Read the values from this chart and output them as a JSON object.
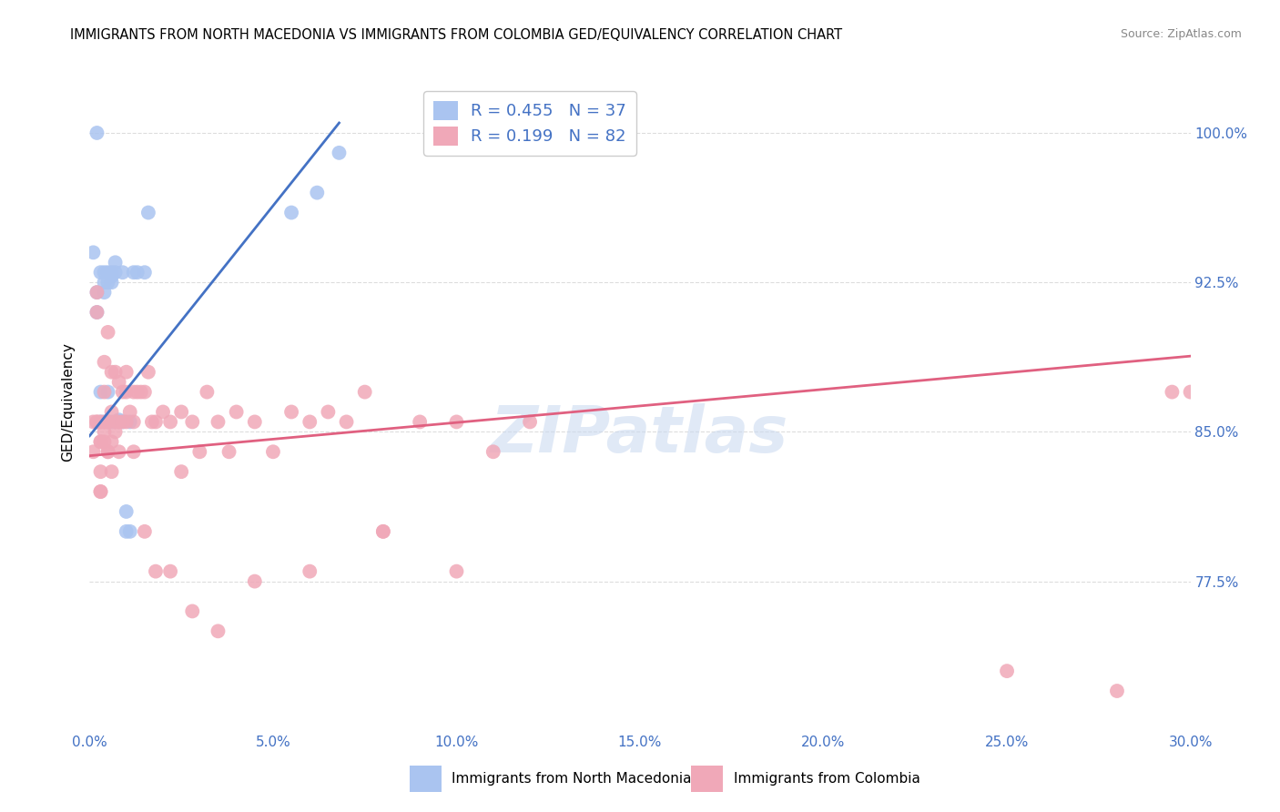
{
  "title": "IMMIGRANTS FROM NORTH MACEDONIA VS IMMIGRANTS FROM COLOMBIA GED/EQUIVALENCY CORRELATION CHART",
  "source": "Source: ZipAtlas.com",
  "ylabel": "GED/Equivalency",
  "ytick_labels": [
    "100.0%",
    "92.5%",
    "85.0%",
    "77.5%"
  ],
  "ytick_values": [
    1.0,
    0.925,
    0.85,
    0.775
  ],
  "xlim": [
    0.0,
    0.3
  ],
  "ylim": [
    0.7,
    1.03
  ],
  "legend_entries": [
    {
      "label": "Immigrants from North Macedonia",
      "color": "#aac4f0",
      "R": "0.455",
      "N": "37"
    },
    {
      "label": "Immigrants from Colombia",
      "color": "#f0a8b8",
      "R": "0.199",
      "N": "82"
    }
  ],
  "macedonia_x": [
    0.001,
    0.002,
    0.002,
    0.003,
    0.003,
    0.004,
    0.004,
    0.004,
    0.005,
    0.005,
    0.005,
    0.006,
    0.006,
    0.006,
    0.007,
    0.007,
    0.007,
    0.008,
    0.008,
    0.009,
    0.009,
    0.01,
    0.01,
    0.011,
    0.011,
    0.012,
    0.013,
    0.015,
    0.016,
    0.003,
    0.004,
    0.005,
    0.006,
    0.055,
    0.062,
    0.068,
    0.002
  ],
  "macedonia_y": [
    0.94,
    0.92,
    0.91,
    0.87,
    0.93,
    0.93,
    0.925,
    0.92,
    0.93,
    0.925,
    0.87,
    0.93,
    0.928,
    0.925,
    0.93,
    0.935,
    0.855,
    0.855,
    0.856,
    0.93,
    0.855,
    0.8,
    0.81,
    0.8,
    0.855,
    0.93,
    0.93,
    0.93,
    0.96,
    0.855,
    0.855,
    0.855,
    0.855,
    0.96,
    0.97,
    0.99,
    1.0
  ],
  "colombia_x": [
    0.001,
    0.001,
    0.002,
    0.002,
    0.002,
    0.003,
    0.003,
    0.003,
    0.003,
    0.004,
    0.004,
    0.004,
    0.004,
    0.005,
    0.005,
    0.005,
    0.006,
    0.006,
    0.006,
    0.007,
    0.007,
    0.008,
    0.008,
    0.009,
    0.009,
    0.01,
    0.01,
    0.011,
    0.012,
    0.012,
    0.013,
    0.014,
    0.015,
    0.016,
    0.017,
    0.018,
    0.02,
    0.022,
    0.025,
    0.025,
    0.028,
    0.03,
    0.032,
    0.035,
    0.038,
    0.04,
    0.045,
    0.05,
    0.055,
    0.06,
    0.065,
    0.07,
    0.075,
    0.08,
    0.09,
    0.1,
    0.11,
    0.12,
    0.002,
    0.003,
    0.003,
    0.004,
    0.005,
    0.005,
    0.006,
    0.007,
    0.008,
    0.01,
    0.012,
    0.015,
    0.018,
    0.022,
    0.028,
    0.035,
    0.045,
    0.06,
    0.08,
    0.1,
    0.25,
    0.28,
    0.295,
    0.3
  ],
  "colombia_y": [
    0.855,
    0.84,
    0.92,
    0.91,
    0.855,
    0.855,
    0.845,
    0.83,
    0.82,
    0.885,
    0.87,
    0.855,
    0.845,
    0.9,
    0.855,
    0.84,
    0.88,
    0.86,
    0.845,
    0.88,
    0.855,
    0.875,
    0.855,
    0.87,
    0.855,
    0.88,
    0.87,
    0.86,
    0.87,
    0.855,
    0.87,
    0.87,
    0.87,
    0.88,
    0.855,
    0.855,
    0.86,
    0.855,
    0.86,
    0.83,
    0.855,
    0.84,
    0.87,
    0.855,
    0.84,
    0.86,
    0.855,
    0.84,
    0.86,
    0.855,
    0.86,
    0.855,
    0.87,
    0.8,
    0.855,
    0.855,
    0.84,
    0.855,
    0.855,
    0.845,
    0.82,
    0.85,
    0.855,
    0.84,
    0.83,
    0.85,
    0.84,
    0.855,
    0.84,
    0.8,
    0.78,
    0.78,
    0.76,
    0.75,
    0.775,
    0.78,
    0.8,
    0.78,
    0.73,
    0.72,
    0.87,
    0.87
  ],
  "mac_line_x": [
    0.0,
    0.068
  ],
  "mac_line_y": [
    0.848,
    1.005
  ],
  "col_line_x": [
    0.0,
    0.3
  ],
  "col_line_y": [
    0.838,
    0.888
  ],
  "axis_color": "#4472c4",
  "background_color": "#ffffff",
  "grid_color": "#dddddd",
  "mac_dot_color": "#aac4f0",
  "col_dot_color": "#f0a8b8",
  "mac_line_color": "#4472c4",
  "col_line_color": "#e06080",
  "watermark": "ZIPatlas",
  "watermark_color": "#c8d8f0"
}
